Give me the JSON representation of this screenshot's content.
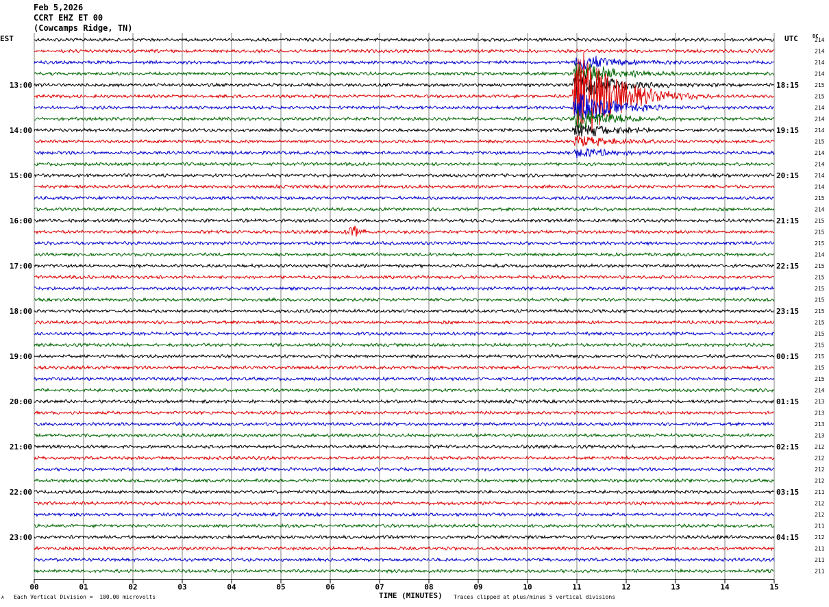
{
  "header": {
    "date": "Feb 5,2026",
    "channel": "CCRT EHZ ET 00",
    "station": "(Cowcamps Ridge, TN)"
  },
  "corner": {
    "left_tz": "EST",
    "right_tz": "UTC",
    "dc_label": "DC"
  },
  "footer": {
    "scale_note": "Each Vertical Division =  100.00 microvolts",
    "xlabel": "TIME (MINUTES)",
    "clip_note": "Traces clipped at plus/minus 5 vertical divisions",
    "mark": "A"
  },
  "colors": {
    "trace_cycle": [
      "#000000",
      "#dd0000",
      "#0000cc",
      "#006600"
    ],
    "grid": "#808080"
  },
  "chart_data": {
    "type": "line",
    "title": "",
    "xlabel": "TIME (MINUTES)",
    "xlim": [
      0,
      15
    ],
    "x_ticks": [
      "00",
      "01",
      "02",
      "03",
      "04",
      "05",
      "06",
      "07",
      "08",
      "09",
      "10",
      "11",
      "12",
      "13",
      "14",
      "15"
    ],
    "row_count": 48,
    "rows_per_hour": 4,
    "left_hour_labels": [
      "13:00",
      "14:00",
      "15:00",
      "16:00",
      "17:00",
      "18:00",
      "19:00",
      "20:00",
      "21:00",
      "22:00",
      "23:00"
    ],
    "left_label_first_row": 4,
    "right_hour_labels": [
      "18:15",
      "19:15",
      "20:15",
      "21:15",
      "22:15",
      "23:15",
      "00:15",
      "01:15",
      "02:15",
      "03:15",
      "04:15"
    ],
    "right_label_first_row": 4,
    "dc_offsets": [
      214,
      214,
      214,
      214,
      215,
      215,
      214,
      214,
      214,
      215,
      214,
      214,
      214,
      214,
      215,
      214,
      215,
      215,
      215,
      214,
      215,
      215,
      215,
      215,
      215,
      215,
      215,
      215,
      215,
      215,
      215,
      214,
      213,
      213,
      213,
      213,
      212,
      212,
      212,
      212,
      211,
      212,
      212,
      211,
      212,
      211,
      211,
      211
    ],
    "events": [
      {
        "row": 5,
        "start_min": 10.9,
        "peak_min": 11.0,
        "end_min": 14.0,
        "amplitude": "clipped",
        "bleed_rows": [
          2,
          3,
          4,
          6,
          7,
          8,
          9,
          10
        ]
      },
      {
        "row": 17,
        "start_min": 6.2,
        "peak_min": 6.55,
        "end_min": 7.0,
        "amplitude": "moderate"
      }
    ]
  }
}
